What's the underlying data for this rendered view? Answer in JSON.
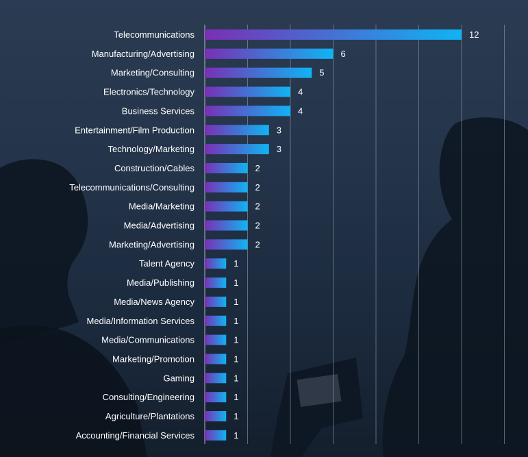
{
  "chart_data": {
    "type": "bar",
    "orientation": "horizontal",
    "title": "",
    "xlabel": "",
    "ylabel": "",
    "categories": [
      "Telecommunications",
      "Manufacturing/Advertising",
      "Marketing/Consulting",
      "Electronics/Technology",
      "Business Services",
      "Entertainment/Film Production",
      "Technology/Marketing",
      "Construction/Cables",
      "Telecommunications/Consulting",
      "Media/Marketing",
      "Media/Advertising",
      "Marketing/Advertising",
      "Talent Agency",
      "Media/Publishing",
      "Media/News Agency",
      "Media/Information Services",
      "Media/Communications",
      "Marketing/Promotion",
      "Gaming",
      "Consulting/Engineering",
      "Agriculture/Plantations",
      "Accounting/Financial Services"
    ],
    "values": [
      12,
      6,
      5,
      4,
      4,
      3,
      3,
      2,
      2,
      2,
      2,
      2,
      1,
      1,
      1,
      1,
      1,
      1,
      1,
      1,
      1,
      1
    ],
    "xlim": [
      0,
      14
    ],
    "grid": true,
    "data_labels": true,
    "bar_gradient": [
      "#7a2fb5",
      "#0fb4f4"
    ],
    "background_color": "#1d2a3c"
  }
}
